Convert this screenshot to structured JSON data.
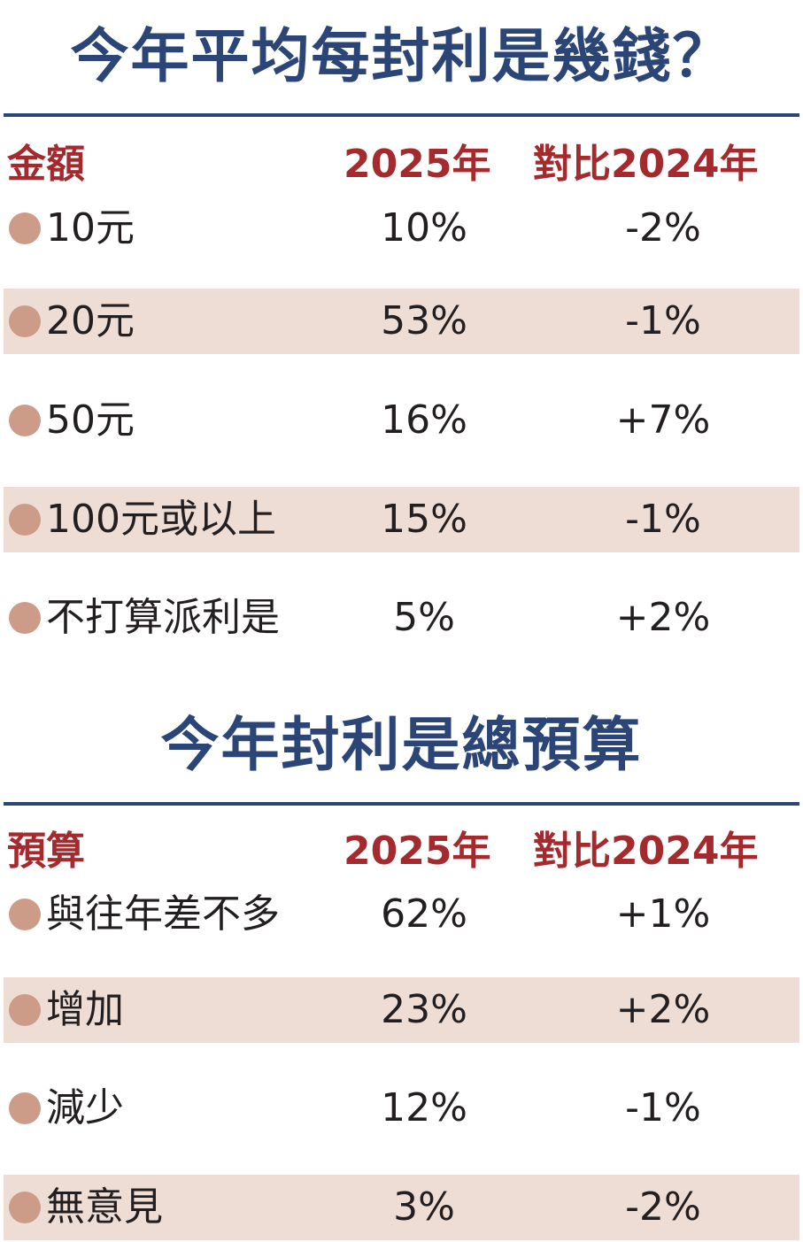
{
  "section1": {
    "title": "今年平均每封利是幾錢？",
    "header": {
      "label": "金額",
      "year": "2025年",
      "compare": "對比2024年"
    },
    "rows": [
      {
        "label": "10元",
        "value": "10%",
        "change": "-2%"
      },
      {
        "label": "20元",
        "value": "53%",
        "change": "-1%"
      },
      {
        "label": "50元",
        "value": "16%",
        "change": "+7%"
      },
      {
        "label": "100元或以上",
        "value": "15%",
        "change": "-1%"
      },
      {
        "label": "不打算派利是",
        "value": "5%",
        "change": "+2%"
      }
    ]
  },
  "section2": {
    "title": "今年封利是總預算",
    "header": {
      "label": "預算",
      "year": "2025年",
      "compare": "對比2024年"
    },
    "rows": [
      {
        "label": "與往年差不多",
        "value": "62%",
        "change": "+1%"
      },
      {
        "label": "增加",
        "value": "23%",
        "change": "+2%"
      },
      {
        "label": "減少",
        "value": "12%",
        "change": "-1%"
      },
      {
        "label": "無意見",
        "value": "3%",
        "change": "-2%"
      }
    ]
  },
  "colors": {
    "title": "#2b4577",
    "header": "#a52a2d",
    "stripe": "#eeddd4",
    "bullet": "#cc9c88",
    "text": "#231f20"
  }
}
